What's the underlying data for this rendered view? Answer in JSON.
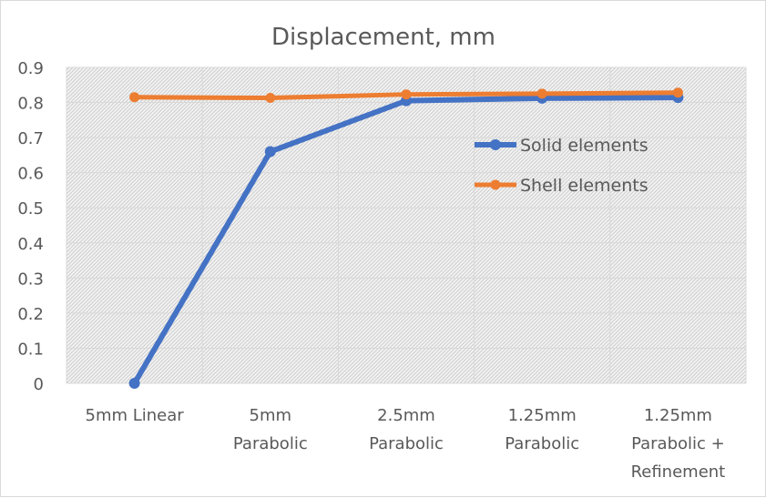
{
  "chart_data": {
    "type": "line",
    "title": "Displacement, mm",
    "categories": [
      [
        "5mm Linear"
      ],
      [
        "5mm",
        "Parabolic"
      ],
      [
        "2.5mm",
        "Parabolic"
      ],
      [
        "1.25mm",
        "Parabolic"
      ],
      [
        "1.25mm",
        "Parabolic +",
        "Refinement"
      ]
    ],
    "series": [
      {
        "name": "Solid elements",
        "color": "#4472C4",
        "values": [
          0.0,
          0.66,
          0.805,
          0.812,
          0.814
        ]
      },
      {
        "name": "Shell elements",
        "color": "#ED7D31",
        "values": [
          0.815,
          0.813,
          0.823,
          0.825,
          0.828
        ]
      }
    ],
    "ylim": [
      0,
      0.9
    ],
    "yticks": [
      "0",
      "0.1",
      "0.2",
      "0.3",
      "0.4",
      "0.5",
      "0.6",
      "0.7",
      "0.8",
      "0.9"
    ],
    "grid": true,
    "legend_position": "right",
    "plot_background": "hatched-gray"
  }
}
